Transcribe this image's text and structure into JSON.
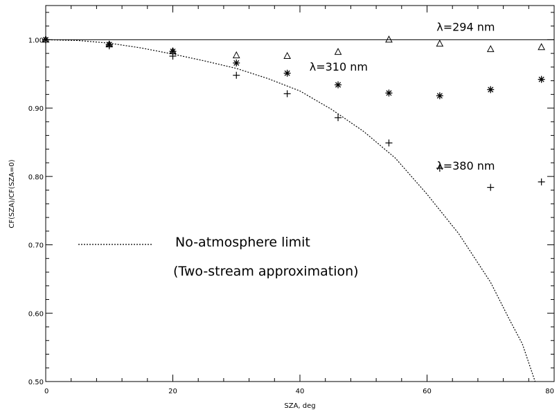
{
  "chart_data": {
    "type": "scatter",
    "xlabel": "SZA, deg",
    "ylabel": "CF(SZA)/CF(SZA=0)",
    "xlim": [
      0,
      80
    ],
    "ylim": [
      0.5,
      1.05
    ],
    "x_ticks": [
      0,
      20,
      40,
      60,
      80
    ],
    "x_tick_labels": [
      "0",
      "20",
      "40",
      "60",
      "80"
    ],
    "y_ticks": [
      0.5,
      0.6,
      0.7,
      0.8,
      0.9,
      1.0
    ],
    "y_tick_labels": [
      "0.50",
      "0.60",
      "0.70",
      "0.80",
      "0.90",
      "1.00"
    ],
    "grid": false,
    "series": [
      {
        "name": "λ=294 nm",
        "marker": "triangle",
        "x": [
          0,
          10,
          20,
          30,
          38,
          46,
          54,
          62,
          70,
          78
        ],
        "y": [
          1.0,
          0.993,
          0.983,
          0.977,
          0.976,
          0.982,
          1.0,
          0.994,
          0.986,
          0.989
        ]
      },
      {
        "name": "λ=310 nm",
        "marker": "asterisk",
        "x": [
          0,
          10,
          20,
          30,
          38,
          46,
          54,
          62,
          70,
          78
        ],
        "y": [
          1.0,
          0.993,
          0.983,
          0.966,
          0.951,
          0.934,
          0.922,
          0.918,
          0.927,
          0.942
        ]
      },
      {
        "name": "λ=380 nm",
        "marker": "plus",
        "x": [
          0,
          10,
          20,
          30,
          38,
          46,
          54,
          62,
          70,
          78
        ],
        "y": [
          1.0,
          0.991,
          0.976,
          0.948,
          0.921,
          0.886,
          0.849,
          0.812,
          0.784,
          0.792
        ]
      }
    ],
    "reference_line": {
      "y": 1.0,
      "style": "solid"
    },
    "no_atmosphere_curve": {
      "style": "dotted",
      "x": [
        0,
        5,
        10,
        15,
        20,
        25,
        30,
        35,
        40,
        45,
        50,
        55,
        60,
        65,
        70,
        73,
        75,
        77
      ],
      "y": [
        1.0,
        0.999,
        0.995,
        0.988,
        0.979,
        0.969,
        0.958,
        0.943,
        0.925,
        0.898,
        0.866,
        0.827,
        0.774,
        0.716,
        0.645,
        0.59,
        0.555,
        0.5
      ]
    },
    "annotations": [
      {
        "text": "λ=294 nm",
        "x": 61.5,
        "y": 1.013
      },
      {
        "text": "λ=310 nm",
        "x": 41.5,
        "y": 0.955
      },
      {
        "text": "λ=380 nm",
        "x": 61.5,
        "y": 0.81
      }
    ],
    "legend": {
      "label": "No-atmosphere limit",
      "sublabel": "(Two-stream approximation)"
    }
  }
}
